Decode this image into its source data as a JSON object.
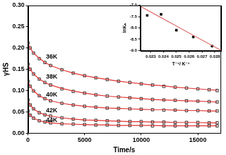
{
  "chart_data": [
    {
      "type": "scatter",
      "x_label": "Time/s",
      "y_label": "γHS",
      "xlim": [
        0,
        17000
      ],
      "xticks": [
        0,
        5000,
        10000,
        15000
      ],
      "ylim": [
        0,
        0.3
      ],
      "yticks": [
        {
          "value": 0,
          "label": "0.00"
        },
        0.05,
        {
          "value": 0.1,
          "label": "0.10"
        },
        0.15,
        {
          "value": 0.2,
          "label": "0.20"
        },
        0.25,
        {
          "value": 0.3,
          "label": "0.30"
        }
      ],
      "grid": false,
      "x": [
        0,
        200,
        500,
        1000,
        1500,
        2000,
        3000,
        4000,
        5000,
        6000,
        7000,
        8000,
        9000,
        10000,
        11000,
        12000,
        13000,
        14000,
        15000,
        16000,
        16700
      ],
      "series": [
        {
          "name": "36K",
          "type": "scatter",
          "marker": "open_square",
          "color": "#000000",
          "values": [
            0.212,
            0.2,
            0.188,
            0.175,
            0.166,
            0.159,
            0.149,
            0.141,
            0.135,
            0.13,
            0.126,
            0.122,
            0.119,
            0.116,
            0.113,
            0.11,
            0.108,
            0.106,
            0.104,
            0.102,
            0.1
          ]
        },
        {
          "type": "line",
          "line_style": "solid",
          "color": "#e03030",
          "values": [
            0.211,
            0.2,
            0.188,
            0.176,
            0.166,
            0.159,
            0.149,
            0.141,
            0.135,
            0.13,
            0.126,
            0.122,
            0.119,
            0.116,
            0.113,
            0.111,
            0.108,
            0.106,
            0.104,
            0.102,
            0.101
          ]
        },
        {
          "name": "38K",
          "type": "scatter",
          "marker": "open_square",
          "color": "#000000",
          "values": [
            0.162,
            0.15,
            0.139,
            0.127,
            0.119,
            0.113,
            0.104,
            0.098,
            0.094,
            0.09,
            0.087,
            0.085,
            0.083,
            0.081,
            0.079,
            0.078,
            0.077,
            0.076,
            0.075,
            0.074,
            0.073
          ]
        },
        {
          "type": "line",
          "line_style": "solid",
          "color": "#e03030",
          "values": [
            0.161,
            0.15,
            0.139,
            0.127,
            0.119,
            0.113,
            0.105,
            0.099,
            0.094,
            0.09,
            0.087,
            0.085,
            0.083,
            0.081,
            0.079,
            0.078,
            0.077,
            0.076,
            0.075,
            0.074,
            0.073
          ]
        },
        {
          "name": "40K",
          "type": "scatter",
          "marker": "open_square",
          "color": "#000000",
          "values": [
            0.122,
            0.11,
            0.099,
            0.088,
            0.081,
            0.076,
            0.07,
            0.066,
            0.063,
            0.061,
            0.059,
            0.058,
            0.057,
            0.056,
            0.055,
            0.054,
            0.054,
            0.053,
            0.053,
            0.052,
            0.052
          ]
        },
        {
          "type": "line",
          "line_style": "solid",
          "color": "#e03030",
          "values": [
            0.121,
            0.11,
            0.099,
            0.088,
            0.081,
            0.076,
            0.07,
            0.066,
            0.063,
            0.061,
            0.059,
            0.058,
            0.057,
            0.056,
            0.055,
            0.055,
            0.054,
            0.053,
            0.053,
            0.052,
            0.052
          ]
        },
        {
          "name": "42K",
          "type": "scatter",
          "marker": "open_square",
          "color": "#000000",
          "values": [
            0.078,
            0.066,
            0.057,
            0.048,
            0.043,
            0.04,
            0.036,
            0.033,
            0.031,
            0.03,
            0.029,
            0.028,
            0.027,
            0.027,
            0.026,
            0.026,
            0.025,
            0.025,
            0.025,
            0.024,
            0.024
          ]
        },
        {
          "type": "line",
          "line_style": "solid",
          "color": "#e03030",
          "values": [
            0.077,
            0.066,
            0.057,
            0.048,
            0.043,
            0.04,
            0.036,
            0.033,
            0.031,
            0.03,
            0.029,
            0.028,
            0.027,
            0.027,
            0.026,
            0.026,
            0.025,
            0.025,
            0.025,
            0.024,
            0.024
          ]
        },
        {
          "name": "44K",
          "type": "scatter",
          "marker": "open_square",
          "color": "#000000",
          "values": [
            0.052,
            0.042,
            0.035,
            0.029,
            0.026,
            0.024,
            0.022,
            0.021,
            0.02,
            0.019,
            0.019,
            0.018,
            0.018,
            0.018,
            0.017,
            0.017,
            0.017,
            0.017,
            0.017,
            0.017,
            0.017
          ]
        },
        {
          "type": "line",
          "line_style": "solid",
          "color": "#e03030",
          "values": [
            0.051,
            0.042,
            0.035,
            0.029,
            0.026,
            0.024,
            0.022,
            0.021,
            0.02,
            0.019,
            0.019,
            0.018,
            0.018,
            0.018,
            0.018,
            0.017,
            0.017,
            0.017,
            0.017,
            0.017,
            0.017
          ]
        }
      ],
      "annotations": [
        {
          "text": "36K",
          "x": 2100,
          "y": 0.18
        },
        {
          "text": "38K",
          "x": 2100,
          "y": 0.132
        },
        {
          "text": "40K",
          "x": 2100,
          "y": 0.09
        },
        {
          "text": "42K",
          "x": 2100,
          "y": 0.053
        },
        {
          "text": "44K",
          "x": 2100,
          "y": 0.031
        }
      ]
    },
    {
      "type": "scatter",
      "x_label": "T⁻¹/ K⁻¹",
      "y_label": "lnKₕ",
      "xlim": [
        0.0222,
        0.0285
      ],
      "xticks": [
        0.023,
        0.024,
        0.025,
        0.026,
        0.027,
        0.028
      ],
      "ylim": [
        -9,
        -7
      ],
      "yticks": [
        {
          "value": -9,
          "label": "-9.0"
        },
        -8.5,
        {
          "value": -8,
          "label": "-8.0"
        },
        -7.5,
        {
          "value": -7,
          "label": "-7.0"
        }
      ],
      "grid": false,
      "x": [
        0.0222,
        0.02273,
        0.02381,
        0.025,
        0.02632,
        0.02778,
        0.0285
      ],
      "series": [
        {
          "type": "scatter",
          "marker": "square",
          "color": "#000000",
          "values": [
            null,
            -7.45,
            -7.4,
            -8.1,
            -8.4,
            -8.8,
            null
          ]
        },
        {
          "type": "line",
          "line_style": "solid",
          "color": "#e07070",
          "values": [
            -7.05,
            -7.214,
            -7.548,
            -7.916,
            -8.325,
            -8.777,
            -9.0
          ]
        }
      ]
    }
  ]
}
